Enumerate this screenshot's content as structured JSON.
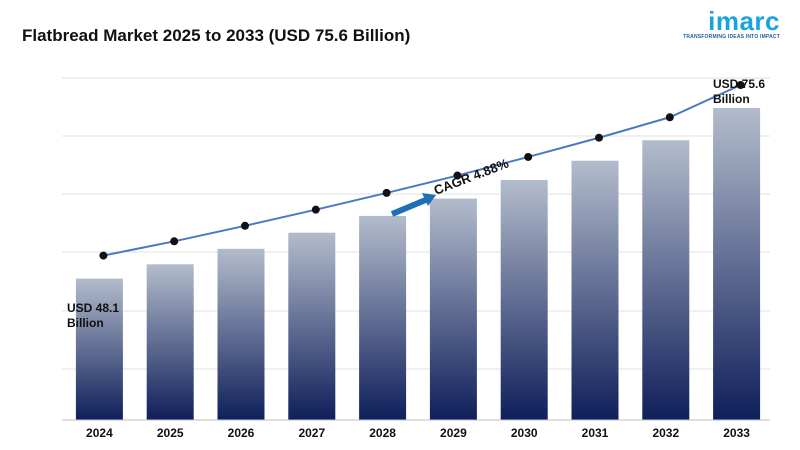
{
  "title": "Flatbread Market 2025 to 2033 (USD 75.6 Billion)",
  "brand": {
    "name": "imarc",
    "tagline": "TRANSFORMING IDEAS INTO IMPACT",
    "color": "#1aa3dc"
  },
  "annotations": {
    "start_line1": "USD 48.1",
    "start_line2": "Billion",
    "end_line1": "USD 75.6",
    "end_line2": "Billion",
    "cagr": "CAGR 4.88%"
  },
  "colors": {
    "bar_top": "#b3bccc",
    "bar_bottom": "#0f1f5a",
    "line": "#4a79c1",
    "marker": "#111111",
    "arrow": "#1e6fb8"
  },
  "chart_data": {
    "type": "bar",
    "categories": [
      "2024",
      "2025",
      "2026",
      "2027",
      "2028",
      "2029",
      "2030",
      "2031",
      "2032",
      "2033"
    ],
    "values": [
      48.1,
      50.4,
      52.9,
      55.5,
      58.2,
      61.0,
      64.0,
      67.1,
      70.4,
      75.6
    ],
    "overlay_line": true,
    "ylim": [
      0,
      80
    ],
    "grid": true
  }
}
